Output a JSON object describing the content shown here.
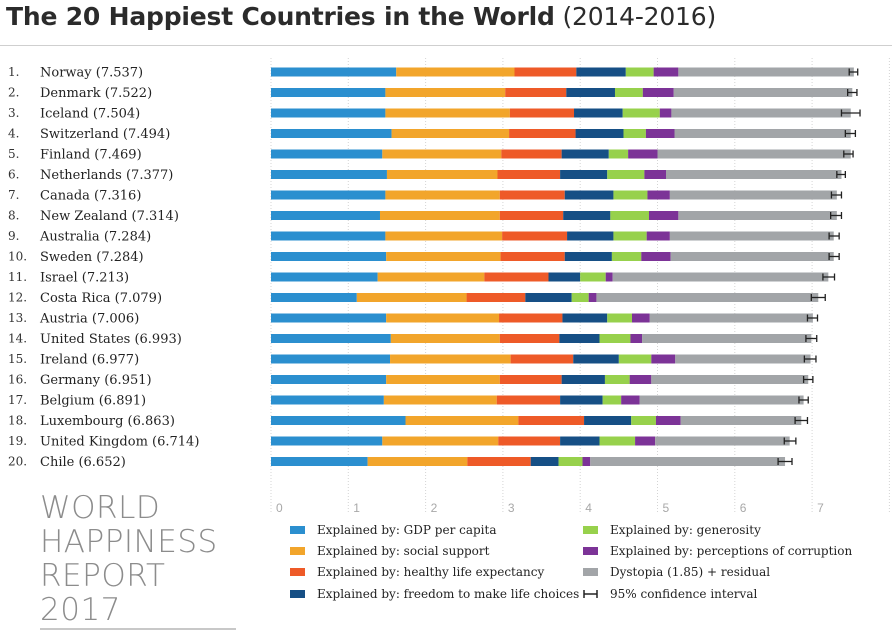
{
  "title": {
    "bold": "The 20 Happiest Countries in the World",
    "light": "(2014-2016)"
  },
  "colors": {
    "gdp": "#2b8fcf",
    "social": "#f2a52b",
    "health": "#ee5a28",
    "freedom": "#164f85",
    "generosity": "#97d14c",
    "corruption": "#7c3397",
    "dystopia": "#a2a5a8",
    "ci": "#222222"
  },
  "chart_data": {
    "type": "bar",
    "orientation": "horizontal",
    "stacked": true,
    "xlim": [
      0,
      8
    ],
    "x_ticks": [
      "0",
      "1",
      "2",
      "3",
      "4",
      "5",
      "6",
      "7",
      "8"
    ],
    "grid": "vertical dotted",
    "categories": [
      {
        "rank": "1.",
        "label": "Norway (7.537)",
        "score": 7.537,
        "ci": [
          7.48,
          7.59
        ]
      },
      {
        "rank": "2.",
        "label": "Denmark (7.522)",
        "score": 7.522,
        "ci": [
          7.46,
          7.58
        ]
      },
      {
        "rank": "3.",
        "label": "Iceland (7.504)",
        "score": 7.504,
        "ci": [
          7.38,
          7.62
        ]
      },
      {
        "rank": "4.",
        "label": "Switzerland (7.494)",
        "score": 7.494,
        "ci": [
          7.43,
          7.56
        ]
      },
      {
        "rank": "5.",
        "label": "Finland (7.469)",
        "score": 7.469,
        "ci": [
          7.41,
          7.53
        ]
      },
      {
        "rank": "6.",
        "label": "Netherlands (7.377)",
        "score": 7.377,
        "ci": [
          7.32,
          7.43
        ]
      },
      {
        "rank": "7.",
        "label": "Canada (7.316)",
        "score": 7.316,
        "ci": [
          7.25,
          7.38
        ]
      },
      {
        "rank": "8.",
        "label": "New Zealand (7.314)",
        "score": 7.314,
        "ci": [
          7.24,
          7.38
        ]
      },
      {
        "rank": "9.",
        "label": "Australia (7.284)",
        "score": 7.284,
        "ci": [
          7.22,
          7.35
        ]
      },
      {
        "rank": "10.",
        "label": "Sweden (7.284)",
        "score": 7.284,
        "ci": [
          7.22,
          7.35
        ]
      },
      {
        "rank": "11.",
        "label": "Israel (7.213)",
        "score": 7.213,
        "ci": [
          7.14,
          7.29
        ]
      },
      {
        "rank": "12.",
        "label": "Costa Rica (7.079)",
        "score": 7.079,
        "ci": [
          6.99,
          7.17
        ]
      },
      {
        "rank": "13.",
        "label": "Austria (7.006)",
        "score": 7.006,
        "ci": [
          6.94,
          7.07
        ]
      },
      {
        "rank": "14.",
        "label": "United States (6.993)",
        "score": 6.993,
        "ci": [
          6.92,
          7.06
        ]
      },
      {
        "rank": "15.",
        "label": "Ireland (6.977)",
        "score": 6.977,
        "ci": [
          6.9,
          7.05
        ]
      },
      {
        "rank": "16.",
        "label": "Germany (6.951)",
        "score": 6.951,
        "ci": [
          6.89,
          7.01
        ]
      },
      {
        "rank": "17.",
        "label": "Belgium (6.891)",
        "score": 6.891,
        "ci": [
          6.83,
          6.95
        ]
      },
      {
        "rank": "18.",
        "label": "Luxembourg (6.863)",
        "score": 6.863,
        "ci": [
          6.78,
          6.94
        ]
      },
      {
        "rank": "19.",
        "label": "United Kingdom (6.714)",
        "score": 6.714,
        "ci": [
          6.64,
          6.79
        ]
      },
      {
        "rank": "20.",
        "label": "Chile (6.652)",
        "score": 6.652,
        "ci": [
          6.56,
          6.74
        ]
      }
    ],
    "series": [
      {
        "key": "gdp",
        "name": "Explained by: GDP per capita",
        "values": [
          1.62,
          1.48,
          1.48,
          1.56,
          1.44,
          1.5,
          1.48,
          1.41,
          1.48,
          1.49,
          1.38,
          1.11,
          1.49,
          1.55,
          1.54,
          1.49,
          1.46,
          1.74,
          1.44,
          1.25
        ]
      },
      {
        "key": "social",
        "name": "Explained by: social support",
        "values": [
          1.53,
          1.55,
          1.61,
          1.52,
          1.54,
          1.43,
          1.48,
          1.55,
          1.51,
          1.48,
          1.38,
          1.42,
          1.46,
          1.41,
          1.56,
          1.47,
          1.46,
          1.46,
          1.5,
          1.29
        ]
      },
      {
        "key": "health",
        "name": "Explained by: healthy life expectancy",
        "values": [
          0.8,
          0.79,
          0.83,
          0.86,
          0.78,
          0.81,
          0.84,
          0.82,
          0.84,
          0.83,
          0.83,
          0.76,
          0.82,
          0.77,
          0.81,
          0.8,
          0.82,
          0.85,
          0.8,
          0.82
        ]
      },
      {
        "key": "freedom",
        "name": "Explained by: freedom to make life choices",
        "values": [
          0.64,
          0.63,
          0.63,
          0.62,
          0.61,
          0.61,
          0.63,
          0.61,
          0.6,
          0.61,
          0.41,
          0.6,
          0.58,
          0.52,
          0.59,
          0.56,
          0.55,
          0.61,
          0.51,
          0.36
        ]
      },
      {
        "key": "generosity",
        "name": "Explained by: generosity",
        "values": [
          0.36,
          0.36,
          0.48,
          0.29,
          0.25,
          0.48,
          0.44,
          0.5,
          0.43,
          0.38,
          0.33,
          0.22,
          0.32,
          0.4,
          0.42,
          0.32,
          0.24,
          0.32,
          0.46,
          0.31
        ]
      },
      {
        "key": "corruption",
        "name": "Explained by: perceptions of corruption",
        "values": [
          0.32,
          0.4,
          0.15,
          0.37,
          0.38,
          0.28,
          0.29,
          0.38,
          0.3,
          0.38,
          0.09,
          0.1,
          0.23,
          0.15,
          0.31,
          0.28,
          0.24,
          0.32,
          0.26,
          0.1
        ]
      },
      {
        "key": "dystopia",
        "name": "Dystopia (1.85) + residual",
        "values": [
          2.27,
          2.31,
          2.32,
          2.28,
          2.5,
          2.27,
          2.16,
          2.05,
          2.12,
          2.11,
          2.79,
          2.87,
          2.11,
          2.19,
          1.75,
          2.03,
          2.12,
          1.56,
          1.74,
          2.52
        ]
      }
    ],
    "legend": {
      "placement": "bottom",
      "ci_label": "95% confidence interval"
    }
  },
  "branding": {
    "lines": [
      "WORLD",
      "HAPPINESS",
      "REPORT",
      "2017"
    ]
  }
}
